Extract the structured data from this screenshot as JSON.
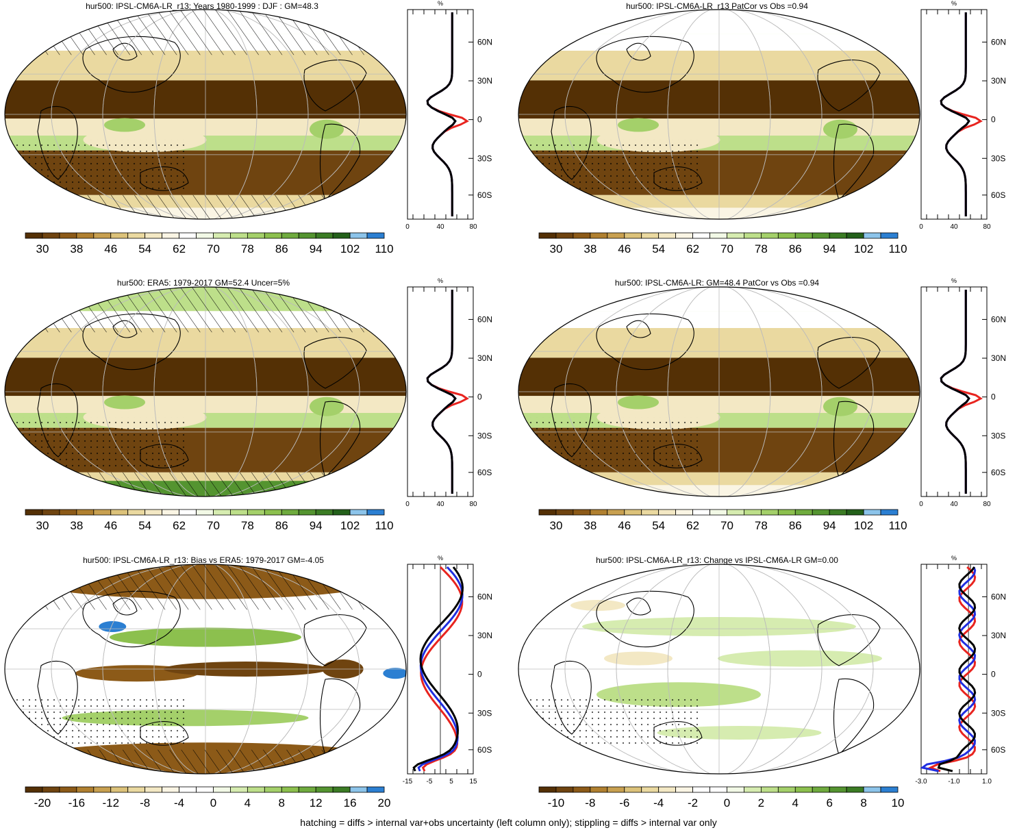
{
  "panels": [
    {
      "title": "hur500: IPSL-CM6A-LR_r13: Years 1980-1999 : DJF : GM=48.3",
      "colorbar_labels": [
        "30",
        "38",
        "46",
        "54",
        "62",
        "70",
        "78",
        "86",
        "94",
        "102",
        "110"
      ],
      "colorbar_kind": "abs",
      "profile": {
        "unit": "%",
        "x_ticks": [
          "0",
          "40",
          "80"
        ],
        "lat_labels": [
          "60N",
          "30N",
          "0",
          "30S",
          "60S"
        ],
        "series_colors": [
          "#e8241f",
          "#1f2ee0",
          "#000000"
        ]
      },
      "hatched": true
    },
    {
      "title": "hur500: IPSL-CM6A-LR_r13 PatCor vs Obs =0.94",
      "colorbar_labels": [
        "30",
        "38",
        "46",
        "54",
        "62",
        "70",
        "78",
        "86",
        "94",
        "102",
        "110"
      ],
      "colorbar_kind": "abs",
      "profile": {
        "unit": "%",
        "x_ticks": [
          "0",
          "40",
          "80"
        ],
        "lat_labels": [
          "60N",
          "30N",
          "0",
          "30S",
          "60S"
        ],
        "series_colors": [
          "#e8241f",
          "#1f2ee0",
          "#000000"
        ]
      },
      "hatched": false
    },
    {
      "title": "hur500: ERA5: 1979-2017 GM=52.4 Uncer=5%",
      "colorbar_labels": [
        "30",
        "38",
        "46",
        "54",
        "62",
        "70",
        "78",
        "86",
        "94",
        "102",
        "110"
      ],
      "colorbar_kind": "abs",
      "profile": {
        "unit": "%",
        "x_ticks": [
          "0",
          "40",
          "80"
        ],
        "lat_labels": [
          "60N",
          "30N",
          "0",
          "30S",
          "60S"
        ],
        "series_colors": [
          "#e8241f",
          "#1f2ee0",
          "#000000"
        ]
      },
      "hatched": true
    },
    {
      "title": "hur500: IPSL-CM6A-LR: GM=48.4 PatCor vs Obs =0.94",
      "colorbar_labels": [
        "30",
        "38",
        "46",
        "54",
        "62",
        "70",
        "78",
        "86",
        "94",
        "102",
        "110"
      ],
      "colorbar_kind": "abs",
      "profile": {
        "unit": "%",
        "x_ticks": [
          "0",
          "40",
          "80"
        ],
        "lat_labels": [
          "60N",
          "30N",
          "0",
          "30S",
          "60S"
        ],
        "series_colors": [
          "#e8241f",
          "#1f2ee0",
          "#000000"
        ]
      },
      "hatched": false
    },
    {
      "title": "hur500: IPSL-CM6A-LR_r13: Bias vs ERA5: 1979-2017 GM=-4.05",
      "colorbar_labels": [
        "-20",
        "-16",
        "-12",
        "-8",
        "-4",
        "0",
        "4",
        "8",
        "12",
        "16",
        "20"
      ],
      "colorbar_kind": "diff",
      "profile": {
        "unit": "%",
        "x_ticks": [
          "-15",
          "-5",
          "5",
          "15"
        ],
        "lat_labels": [
          "60N",
          "30N",
          "0",
          "30S",
          "60S"
        ],
        "series_colors": [
          "#e8241f",
          "#1f2ee0",
          "#000000"
        ]
      },
      "hatched": true
    },
    {
      "title": "hur500: IPSL-CM6A-LR_r13: Change vs IPSL-CM6A-LR GM=0.00",
      "colorbar_labels": [
        "-10",
        "-8",
        "-6",
        "-4",
        "-2",
        "0",
        "2",
        "4",
        "6",
        "8",
        "10"
      ],
      "colorbar_kind": "diff",
      "profile": {
        "unit": "%",
        "x_ticks": [
          "-3.0",
          "-1.0",
          "1.0"
        ],
        "lat_labels": [
          "60N",
          "30N",
          "0",
          "30S",
          "60S"
        ],
        "series_colors": [
          "#e8241f",
          "#1f2ee0",
          "#000000"
        ]
      },
      "hatched": false
    }
  ],
  "colors": {
    "abs_scale": [
      "#543005",
      "#6f4410",
      "#8c5a18",
      "#b08030",
      "#c8a050",
      "#dcc27a",
      "#ead9a0",
      "#f3e8c4",
      "#faf5e4",
      "#ffffff",
      "#f2f9e6",
      "#d6ecb0",
      "#bddf8a",
      "#a4d06a",
      "#8cc04e",
      "#6fab3e",
      "#549430",
      "#3b7c24",
      "#23601a",
      "#8cc4ea",
      "#2b7fd2"
    ],
    "diff_scale": [
      "#543005",
      "#6f4410",
      "#8c5a18",
      "#b08030",
      "#c8a050",
      "#dcc27a",
      "#ead9a0",
      "#f3e8c4",
      "#faf5e4",
      "#ffffff",
      "#ffffff",
      "#f2f9e6",
      "#d6ecb0",
      "#bddf8a",
      "#a4d06a",
      "#8cc04e",
      "#6fab3e",
      "#549430",
      "#3b7c24",
      "#8cc4ea",
      "#2b7fd2"
    ]
  },
  "footnote": "hatching = diffs > internal var+obs uncertainty (left column only); stippling = diffs > internal var only"
}
